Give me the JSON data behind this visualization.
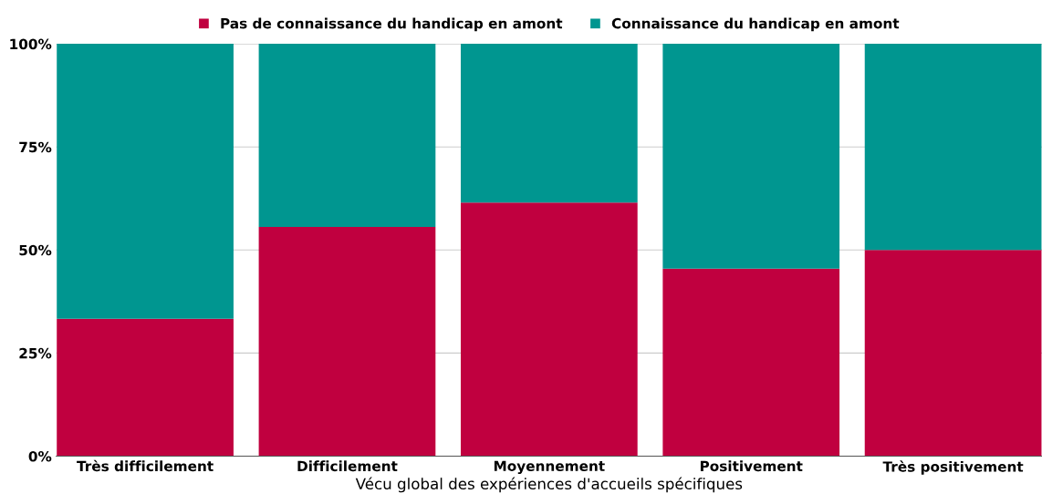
{
  "chart_data": {
    "type": "bar",
    "stacked": true,
    "xlabel": "Vécu global des expériences d'accueils spécifiques",
    "categories": [
      "Très difficilement",
      "Difficilement",
      "Moyennement",
      "Positivement",
      "Très positivement"
    ],
    "series": [
      {
        "name": "Pas de connaissance du handicap en amont",
        "color": "#c0003f",
        "values": [
          33.3,
          55.6,
          61.5,
          45.5,
          50
        ]
      },
      {
        "name": "Connaissance du handicap en amont",
        "color": "#009690",
        "values": [
          66.7,
          44.4,
          38.5,
          54.5,
          50
        ]
      }
    ],
    "ylim": [
      0,
      100
    ],
    "yticks": [
      {
        "value": 0,
        "label": "0%"
      },
      {
        "value": 25,
        "label": "25%"
      },
      {
        "value": 50,
        "label": "50%"
      },
      {
        "value": 75,
        "label": "75%"
      },
      {
        "value": 100,
        "label": "100%"
      }
    ],
    "grid": "y",
    "legend": "top"
  }
}
